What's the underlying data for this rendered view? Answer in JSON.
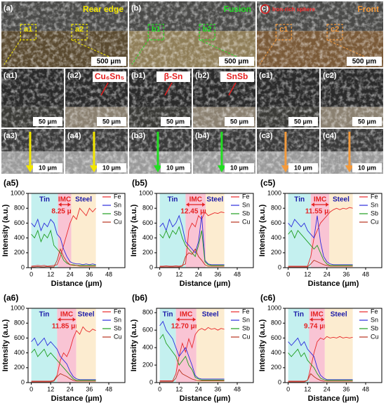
{
  "panels": [
    [
      {
        "label": "(a)",
        "caption": "Rear edge",
        "color": "#f2e600",
        "scale": "500 μm",
        "marks": [
          "a1",
          "a2"
        ]
      },
      {
        "label": "(b)",
        "caption": "Fusion",
        "color": "#22dd22",
        "scale": "500 μm",
        "marks": [
          "b1",
          "b2"
        ]
      },
      {
        "label": "(c)",
        "caption": "Front",
        "color": "#f39a3c",
        "note": "Iron-rich sphere",
        "scale": "500 μm",
        "marks": [
          "c1",
          "c2"
        ]
      }
    ],
    [
      {
        "label": "(a1)",
        "scale": "50 μm"
      },
      {
        "label": "(a2)",
        "note": "Cu₆Sn₅",
        "scale": "50 μm"
      },
      {
        "label": "(b1)",
        "note": "β-Sn",
        "scale": "50 μm"
      },
      {
        "label": "(b2)",
        "note": "SnSb",
        "scale": "50 μm"
      },
      {
        "label": "(c1)",
        "scale": "50 μm"
      },
      {
        "label": "(c2)",
        "scale": "50 μm"
      }
    ],
    [
      {
        "label": "(a3)",
        "color": "#f2e600",
        "scale": "10 μm"
      },
      {
        "label": "(a4)",
        "color": "#f2e600",
        "scale": "10 μm"
      },
      {
        "label": "(b3)",
        "color": "#22dd22",
        "scale": "10 μm"
      },
      {
        "label": "(b4)",
        "color": "#22dd22",
        "scale": "10 μm"
      },
      {
        "label": "(c3)",
        "color": "#f39a3c",
        "scale": "10 μm"
      },
      {
        "label": "(c4)",
        "color": "#f39a3c",
        "scale": "10 μm"
      }
    ]
  ],
  "chart_data": [
    {
      "type": "line",
      "title": "(a5)",
      "xlabel": "Distance (μm)",
      "ylabel": "Intensity (a.u.)",
      "annotation": "8.25 μm",
      "x": [
        0,
        2,
        4,
        6,
        8,
        10,
        12,
        14,
        16,
        18,
        20,
        22,
        24,
        26,
        28,
        30,
        32,
        34,
        36,
        38,
        40
      ],
      "xlim": [
        -2,
        58
      ],
      "xticks": [
        0,
        12,
        24,
        36,
        48
      ],
      "ylim": [
        0,
        1000
      ],
      "yticks": [
        0,
        200,
        400,
        600,
        800,
        1000
      ],
      "regions": [
        {
          "label": "Tin",
          "start": 0,
          "end": 16.5,
          "color": "#c4f0ef"
        },
        {
          "label": "IMC",
          "start": 16.5,
          "end": 24.75,
          "color": "#f9c4d4"
        },
        {
          "label": "Steel",
          "start": 24.75,
          "end": 40,
          "color": "#fcecd0"
        }
      ],
      "series": [
        {
          "name": "Fe",
          "color": "#e8282a",
          "values": [
            20,
            25,
            30,
            25,
            30,
            20,
            25,
            30,
            40,
            150,
            300,
            450,
            600,
            700,
            650,
            800,
            750,
            700,
            800,
            750,
            800
          ]
        },
        {
          "name": "Sn",
          "color": "#2b2bdc",
          "values": [
            600,
            550,
            650,
            500,
            600,
            550,
            650,
            600,
            450,
            400,
            250,
            150,
            80,
            60,
            50,
            50,
            40,
            50,
            40,
            50,
            40
          ]
        },
        {
          "name": "Sb",
          "color": "#1f9e1f",
          "values": [
            450,
            400,
            500,
            350,
            450,
            400,
            500,
            300,
            250,
            200,
            100,
            60,
            40,
            40,
            30,
            30,
            30,
            30,
            30,
            30,
            30
          ]
        },
        {
          "name": "Cu",
          "color": "#b8321e",
          "values": [
            10,
            10,
            15,
            10,
            10,
            15,
            10,
            10,
            100,
            250,
            150,
            80,
            40,
            30,
            30,
            20,
            20,
            20,
            20,
            20,
            20
          ]
        }
      ]
    },
    {
      "type": "line",
      "title": "(b5)",
      "xlabel": "Distance (μm)",
      "ylabel": "Intensity (a.u.)",
      "annotation": "12.45 μm",
      "x": [
        0,
        2,
        4,
        6,
        8,
        10,
        12,
        14,
        16,
        18,
        20,
        22,
        24,
        26,
        28,
        30,
        32,
        34,
        36,
        38,
        40
      ],
      "xlim": [
        -2,
        58
      ],
      "xticks": [
        0,
        12,
        24,
        36,
        48
      ],
      "ylim": [
        0,
        1000
      ],
      "yticks": [
        0,
        200,
        400,
        600,
        800,
        1000
      ],
      "regions": [
        {
          "label": "Tin",
          "start": 0,
          "end": 16,
          "color": "#c4f0ef"
        },
        {
          "label": "IMC",
          "start": 16,
          "end": 28.5,
          "color": "#f9c4d4"
        },
        {
          "label": "Steel",
          "start": 28.5,
          "end": 40,
          "color": "#fcecd0"
        }
      ],
      "series": [
        {
          "name": "Fe",
          "color": "#e8282a",
          "values": [
            20,
            20,
            25,
            20,
            20,
            25,
            20,
            30,
            50,
            500,
            600,
            550,
            700,
            650,
            750,
            700,
            720,
            740,
            730,
            750,
            740
          ]
        },
        {
          "name": "Sn",
          "color": "#2b2bdc",
          "values": [
            550,
            600,
            500,
            650,
            550,
            600,
            700,
            550,
            350,
            300,
            250,
            200,
            350,
            700,
            100,
            50,
            40,
            40,
            40,
            40,
            40
          ]
        },
        {
          "name": "Sb",
          "color": "#1f9e1f",
          "values": [
            450,
            400,
            500,
            400,
            500,
            450,
            550,
            400,
            300,
            250,
            200,
            150,
            300,
            500,
            80,
            40,
            30,
            30,
            30,
            30,
            30
          ]
        },
        {
          "name": "Cu",
          "color": "#b8321e",
          "values": [
            10,
            10,
            10,
            10,
            10,
            10,
            10,
            20,
            150,
            200,
            180,
            250,
            150,
            100,
            40,
            20,
            20,
            20,
            20,
            20,
            20
          ]
        }
      ]
    },
    {
      "type": "line",
      "title": "(c5)",
      "xlabel": "Distance (μm)",
      "ylabel": "Intensity (a.u.)",
      "annotation": "11.55 μm",
      "x": [
        0,
        2,
        4,
        6,
        8,
        10,
        12,
        14,
        16,
        18,
        20,
        22,
        24,
        26,
        28,
        30,
        32,
        34,
        36,
        38,
        40
      ],
      "xlim": [
        -2,
        58
      ],
      "xticks": [
        0,
        12,
        24,
        36,
        48
      ],
      "ylim": [
        0,
        1000
      ],
      "yticks": [
        0,
        200,
        400,
        600,
        800,
        1000
      ],
      "regions": [
        {
          "label": "Tin",
          "start": 0,
          "end": 14,
          "color": "#c4f0ef"
        },
        {
          "label": "IMC",
          "start": 14,
          "end": 25.5,
          "color": "#f9c4d4"
        },
        {
          "label": "Steel",
          "start": 25.5,
          "end": 40,
          "color": "#fcecd0"
        }
      ],
      "series": [
        {
          "name": "Fe",
          "color": "#e8282a",
          "values": [
            20,
            20,
            20,
            20,
            20,
            20,
            20,
            150,
            400,
            500,
            600,
            650,
            700,
            750,
            780,
            800,
            780,
            800,
            790,
            810,
            800
          ]
        },
        {
          "name": "Sn",
          "color": "#2b2bdc",
          "values": [
            600,
            550,
            650,
            600,
            550,
            600,
            500,
            450,
            400,
            700,
            350,
            150,
            80,
            50,
            40,
            40,
            40,
            40,
            40,
            40,
            40
          ]
        },
        {
          "name": "Sb",
          "color": "#1f9e1f",
          "values": [
            450,
            500,
            400,
            500,
            450,
            400,
            350,
            300,
            250,
            300,
            200,
            100,
            50,
            30,
            30,
            30,
            30,
            30,
            30,
            30,
            30
          ]
        },
        {
          "name": "Cu",
          "color": "#b8321e",
          "values": [
            10,
            10,
            10,
            10,
            10,
            10,
            10,
            50,
            100,
            80,
            60,
            40,
            30,
            20,
            20,
            20,
            20,
            20,
            20,
            20,
            20
          ]
        }
      ]
    },
    {
      "type": "line",
      "title": "(a6)",
      "xlabel": "Distance (μm)",
      "ylabel": "Intensity (a.u.)",
      "annotation": "11.85 μm",
      "x": [
        0,
        2,
        4,
        6,
        8,
        10,
        12,
        14,
        16,
        18,
        20,
        22,
        24,
        26,
        28,
        30,
        32,
        34,
        36,
        38,
        40
      ],
      "xlim": [
        -2,
        58
      ],
      "xticks": [
        0,
        12,
        24,
        36,
        48
      ],
      "ylim": [
        0,
        1000
      ],
      "yticks": [
        0,
        200,
        400,
        600,
        800,
        1000
      ],
      "regions": [
        {
          "label": "Tin",
          "start": 0,
          "end": 16,
          "color": "#c4f0ef"
        },
        {
          "label": "IMC",
          "start": 16,
          "end": 27.85,
          "color": "#f9c4d4"
        },
        {
          "label": "Steel",
          "start": 27.85,
          "end": 40,
          "color": "#fcecd0"
        }
      ],
      "series": [
        {
          "name": "Fe",
          "color": "#e8282a",
          "values": [
            20,
            20,
            20,
            20,
            20,
            20,
            20,
            30,
            100,
            300,
            400,
            350,
            450,
            600,
            700,
            650,
            750,
            700,
            680,
            720,
            700
          ]
        },
        {
          "name": "Sn",
          "color": "#2b2bdc",
          "values": [
            550,
            600,
            500,
            550,
            600,
            500,
            550,
            500,
            450,
            350,
            300,
            250,
            150,
            80,
            50,
            40,
            40,
            40,
            40,
            40,
            40
          ]
        },
        {
          "name": "Sb",
          "color": "#1f9e1f",
          "values": [
            400,
            450,
            350,
            400,
            450,
            350,
            400,
            350,
            300,
            250,
            200,
            150,
            100,
            50,
            30,
            30,
            30,
            30,
            30,
            30,
            30
          ]
        },
        {
          "name": "Cu",
          "color": "#b8321e",
          "values": [
            10,
            10,
            10,
            10,
            10,
            10,
            10,
            20,
            80,
            120,
            100,
            80,
            50,
            30,
            20,
            20,
            20,
            20,
            20,
            20,
            20
          ]
        }
      ]
    },
    {
      "type": "line",
      "title": "(b6)",
      "xlabel": "Distance (μm)",
      "ylabel": "Intensity (a.u.)",
      "annotation": "12.70 μm",
      "x": [
        0,
        2,
        4,
        6,
        8,
        10,
        12,
        14,
        16,
        18,
        20,
        22,
        24,
        26,
        28,
        30,
        32,
        34,
        36,
        38,
        40
      ],
      "xlim": [
        -2,
        58
      ],
      "xticks": [
        0,
        12,
        24,
        36,
        48
      ],
      "ylim": [
        0,
        850
      ],
      "yticks": [
        0,
        200,
        400,
        600,
        800
      ],
      "regions": [
        {
          "label": "Tin",
          "start": 0,
          "end": 10,
          "color": "#c4f0ef"
        },
        {
          "label": "IMC",
          "start": 10,
          "end": 22.7,
          "color": "#f9c4d4"
        },
        {
          "label": "Steel",
          "start": 22.7,
          "end": 40,
          "color": "#fcecd0"
        }
      ],
      "series": [
        {
          "name": "Fe",
          "color": "#e8282a",
          "values": [
            20,
            20,
            20,
            20,
            20,
            100,
            300,
            450,
            350,
            500,
            400,
            550,
            600,
            620,
            600,
            630,
            610,
            620,
            600,
            620,
            610
          ]
        },
        {
          "name": "Sn",
          "color": "#2b2bdc",
          "values": [
            650,
            700,
            600,
            550,
            500,
            400,
            300,
            350,
            400,
            300,
            200,
            80,
            50,
            40,
            40,
            40,
            40,
            40,
            40,
            40,
            40
          ]
        },
        {
          "name": "Sb",
          "color": "#1f9e1f",
          "values": [
            500,
            550,
            450,
            400,
            350,
            300,
            200,
            250,
            300,
            200,
            150,
            60,
            40,
            30,
            30,
            30,
            30,
            30,
            30,
            30,
            30
          ]
        },
        {
          "name": "Cu",
          "color": "#b8321e",
          "values": [
            10,
            10,
            10,
            10,
            10,
            50,
            150,
            100,
            80,
            60,
            40,
            30,
            20,
            20,
            20,
            20,
            20,
            20,
            20,
            20,
            20
          ]
        }
      ]
    },
    {
      "type": "line",
      "title": "(c6)",
      "xlabel": "Distance (μm)",
      "ylabel": "Intensity (a.u.)",
      "annotation": "9.74 μm",
      "x": [
        0,
        2,
        4,
        6,
        8,
        10,
        12,
        14,
        16,
        18,
        20,
        22,
        24,
        26,
        28,
        30,
        32,
        34,
        36,
        38,
        40
      ],
      "xlim": [
        -2,
        58
      ],
      "xticks": [
        0,
        12,
        24,
        36,
        48
      ],
      "ylim": [
        0,
        1000
      ],
      "yticks": [
        0,
        200,
        400,
        600,
        800,
        1000
      ],
      "regions": [
        {
          "label": "Tin",
          "start": 0,
          "end": 13,
          "color": "#c4f0ef"
        },
        {
          "label": "IMC",
          "start": 13,
          "end": 22.7,
          "color": "#f9c4d4"
        },
        {
          "label": "Steel",
          "start": 22.7,
          "end": 40,
          "color": "#fcecd0"
        }
      ],
      "series": [
        {
          "name": "Fe",
          "color": "#e8282a",
          "values": [
            20,
            20,
            20,
            20,
            20,
            20,
            30,
            200,
            400,
            550,
            600,
            580,
            620,
            600,
            610,
            600,
            620,
            600,
            610,
            600,
            610
          ]
        },
        {
          "name": "Sn",
          "color": "#2b2bdc",
          "values": [
            550,
            500,
            550,
            600,
            500,
            550,
            450,
            400,
            350,
            200,
            100,
            60,
            40,
            40,
            40,
            40,
            40,
            40,
            40,
            40,
            40
          ]
        },
        {
          "name": "Sb",
          "color": "#1f9e1f",
          "values": [
            400,
            350,
            400,
            450,
            350,
            400,
            300,
            250,
            200,
            120,
            60,
            40,
            30,
            30,
            30,
            30,
            30,
            30,
            30,
            30,
            30
          ]
        },
        {
          "name": "Cu",
          "color": "#b8321e",
          "values": [
            10,
            10,
            10,
            10,
            10,
            10,
            30,
            120,
            80,
            50,
            30,
            20,
            20,
            20,
            20,
            20,
            20,
            20,
            20,
            20,
            20
          ]
        }
      ]
    }
  ]
}
